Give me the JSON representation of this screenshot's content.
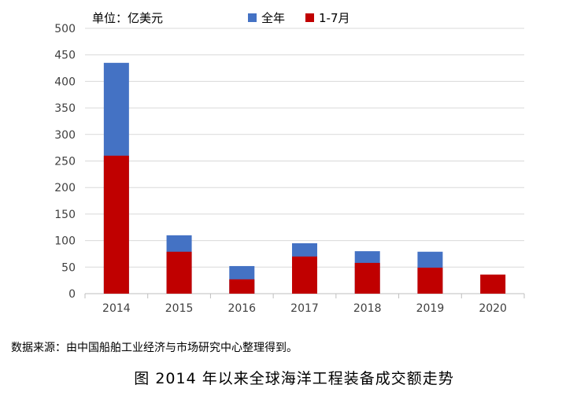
{
  "unit_label": "单位：亿美元",
  "source_note": "数据来源：由中国船舶工业经济与市场研究中心整理得到。",
  "caption": "图  2014 年以来全球海洋工程装备成交额走势",
  "colors": {
    "full_year": "#4472C4",
    "jan_jul": "#C00000",
    "grid": "#D9D9D9",
    "axis": "#BFBFBF"
  },
  "chart_data": {
    "type": "bar",
    "stacked_overlay": true,
    "title": "",
    "xlabel": "",
    "ylabel": "单位：亿美元",
    "ylim": [
      0,
      500
    ],
    "yticks": [
      0,
      50,
      100,
      150,
      200,
      250,
      300,
      350,
      400,
      450,
      500
    ],
    "categories": [
      "2014",
      "2015",
      "2016",
      "2017",
      "2018",
      "2019",
      "2020"
    ],
    "series": [
      {
        "name": "全年",
        "values": [
          435,
          110,
          52,
          95,
          80,
          79,
          null
        ]
      },
      {
        "name": "1-7月",
        "values": [
          260,
          79,
          27,
          70,
          58,
          49,
          36
        ]
      }
    ],
    "legend_position": "top",
    "grid": true
  }
}
